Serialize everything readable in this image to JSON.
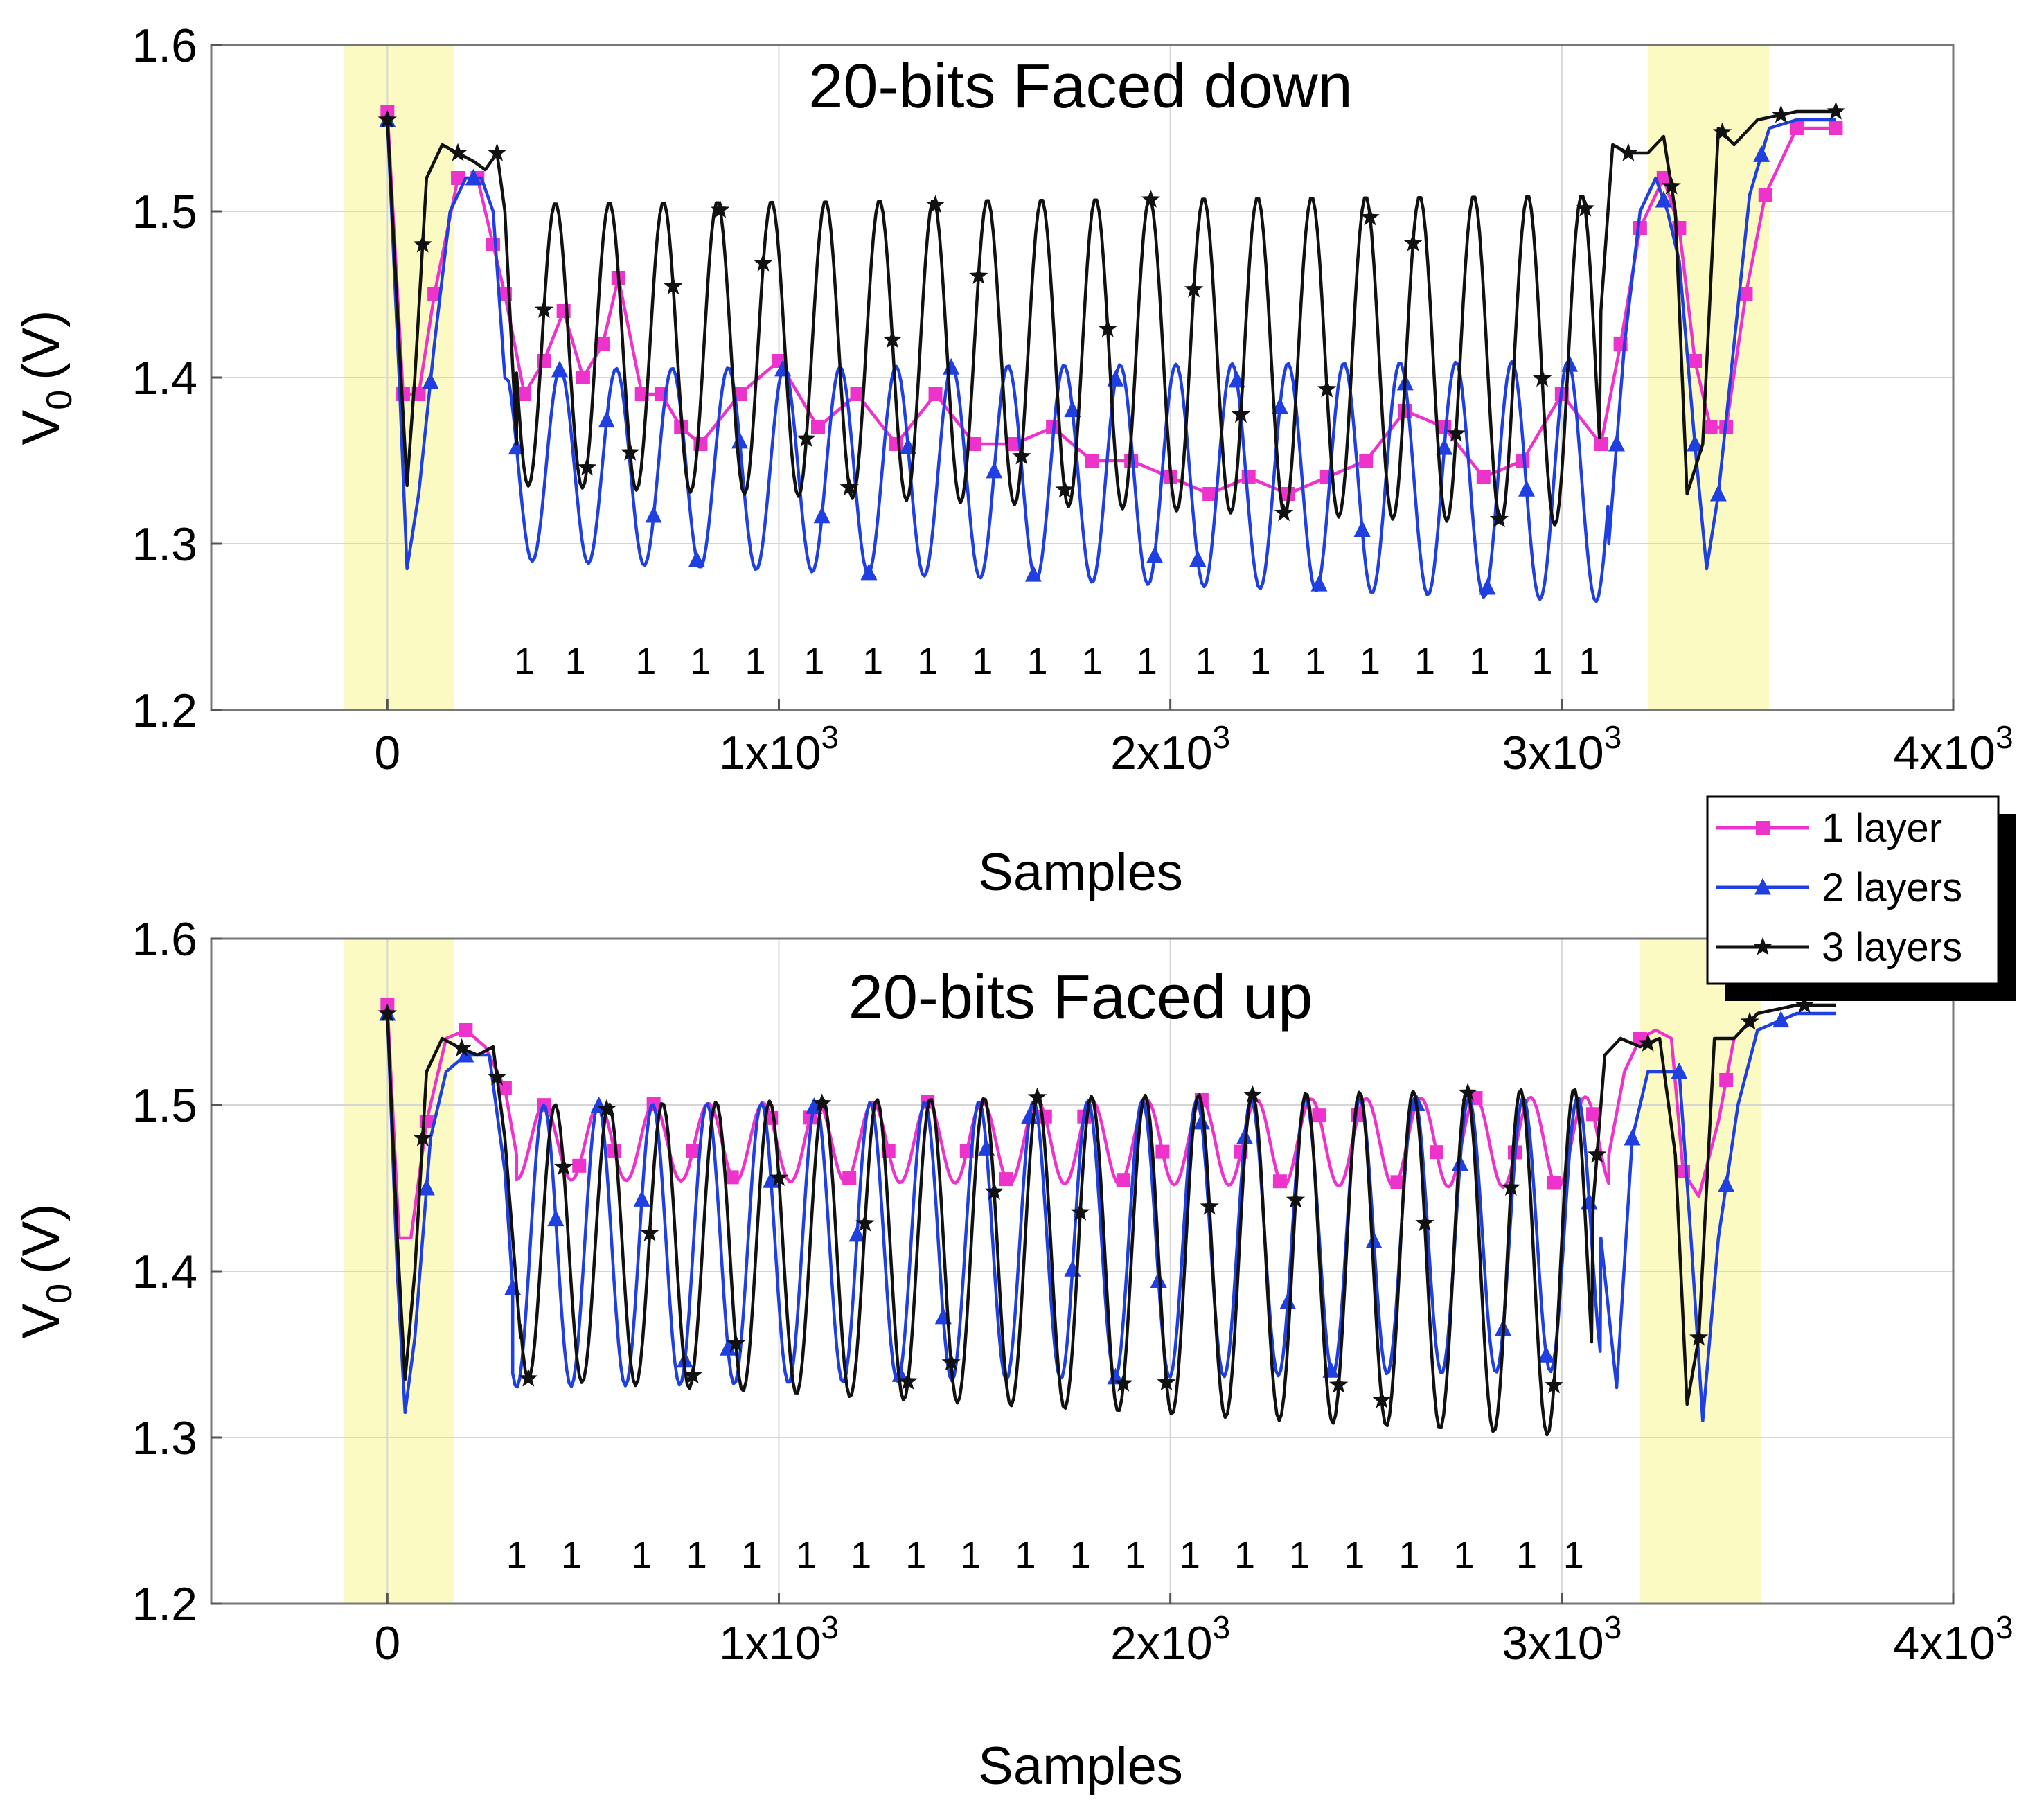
{
  "chart_data": [
    {
      "type": "line",
      "title": "20-bits Faced down",
      "xlabel": "Samples",
      "ylabel": "V",
      "ylabel_sub": "0",
      "ylabel_unit": "(V)",
      "xlim": [
        -450,
        4000
      ],
      "ylim": [
        1.2,
        1.6
      ],
      "x_ticks": [
        {
          "base": "0",
          "exp": ""
        },
        {
          "base": "1x10",
          "exp": "3"
        },
        {
          "base": "2x10",
          "exp": "3"
        },
        {
          "base": "3x10",
          "exp": "3"
        },
        {
          "base": "4x10",
          "exp": "3"
        }
      ],
      "y_ticks": [
        "1.2",
        "1.3",
        "1.4",
        "1.5",
        "1.6"
      ],
      "highlight_regions": [
        [
          -110,
          170
        ],
        [
          3220,
          3530
        ]
      ],
      "highlight_color": "#fcfac3",
      "bit_labels": {
        "text": "1",
        "y": 1.23,
        "x": [
          350,
          480,
          660,
          800,
          940,
          1090,
          1240,
          1380,
          1520,
          1660,
          1800,
          1940,
          2090,
          2230,
          2370,
          2510,
          2650,
          2790,
          2950,
          3070
        ]
      },
      "series": [
        {
          "name": "1 layer",
          "color": "#ee33cc",
          "marker": "square",
          "x": [
            0,
            40,
            80,
            120,
            180,
            230,
            270,
            300,
            350,
            400,
            450,
            500,
            550,
            590,
            650,
            700,
            750,
            800,
            900,
            1000,
            1100,
            1200,
            1300,
            1400,
            1500,
            1600,
            1700,
            1800,
            1900,
            2000,
            2100,
            2200,
            2300,
            2400,
            2500,
            2600,
            2700,
            2800,
            2900,
            3000,
            3100,
            3150,
            3200,
            3260,
            3300,
            3340,
            3380,
            3420,
            3470,
            3520,
            3600,
            3700
          ],
          "y": [
            1.56,
            1.39,
            1.39,
            1.45,
            1.52,
            1.52,
            1.48,
            1.45,
            1.39,
            1.41,
            1.44,
            1.4,
            1.42,
            1.46,
            1.39,
            1.39,
            1.37,
            1.36,
            1.39,
            1.41,
            1.37,
            1.39,
            1.36,
            1.39,
            1.36,
            1.36,
            1.37,
            1.35,
            1.35,
            1.34,
            1.33,
            1.34,
            1.33,
            1.34,
            1.35,
            1.38,
            1.37,
            1.34,
            1.35,
            1.39,
            1.36,
            1.42,
            1.49,
            1.52,
            1.49,
            1.41,
            1.37,
            1.37,
            1.45,
            1.51,
            1.55,
            1.55
          ]
        },
        {
          "name": "2 layers",
          "color": "#1f3fe0",
          "marker": "triangle",
          "osc": {
            "x0": 310,
            "x1": 3120,
            "period": 143,
            "max_start": 1.405,
            "max_end": 1.41,
            "min_start": 1.29,
            "min_end": 1.265,
            "phase": -60
          },
          "pre_x": [
            0,
            30,
            50,
            80,
            120,
            160,
            200,
            240,
            270,
            300
          ],
          "pre_y": [
            1.555,
            1.4,
            1.285,
            1.33,
            1.42,
            1.5,
            1.52,
            1.52,
            1.5,
            1.4
          ],
          "post_x": [
            3120,
            3160,
            3200,
            3240,
            3270,
            3300,
            3340,
            3370,
            3400,
            3440,
            3480,
            3530,
            3600,
            3700
          ],
          "post_y": [
            1.3,
            1.42,
            1.5,
            1.52,
            1.5,
            1.47,
            1.36,
            1.285,
            1.33,
            1.42,
            1.51,
            1.55,
            1.555,
            1.555
          ],
          "marker_x": [
            0,
            110,
            220,
            330,
            440,
            560,
            680,
            790,
            900,
            1010,
            1110,
            1230,
            1330,
            1440,
            1550,
            1650,
            1750,
            1860,
            1960,
            2070,
            2170,
            2280,
            2380,
            2490,
            2600,
            2700,
            2810,
            2910,
            3020,
            3140,
            3260,
            3340,
            3400,
            3510
          ]
        },
        {
          "name": "3 layers",
          "color": "#111111",
          "marker": "star",
          "osc": {
            "x0": 330,
            "x1": 3100,
            "period": 138,
            "max_start": 1.505,
            "max_end": 1.51,
            "min_start": 1.335,
            "min_end": 1.31,
            "phase": -30
          },
          "pre_x": [
            0,
            30,
            50,
            70,
            100,
            140,
            180,
            220,
            250,
            280,
            300,
            330
          ],
          "pre_y": [
            1.555,
            1.42,
            1.335,
            1.4,
            1.52,
            1.54,
            1.535,
            1.53,
            1.525,
            1.535,
            1.5,
            1.36
          ],
          "post_x": [
            3100,
            3130,
            3170,
            3220,
            3260,
            3290,
            3320,
            3360,
            3400,
            3440,
            3500,
            3600,
            3700
          ],
          "post_y": [
            1.44,
            1.54,
            1.535,
            1.535,
            1.545,
            1.5,
            1.33,
            1.36,
            1.55,
            1.54,
            1.555,
            1.56,
            1.56
          ],
          "marker_x": [
            0,
            90,
            180,
            280,
            400,
            510,
            620,
            730,
            850,
            960,
            1070,
            1180,
            1290,
            1400,
            1510,
            1620,
            1730,
            1840,
            1950,
            2060,
            2180,
            2290,
            2400,
            2510,
            2620,
            2730,
            2840,
            2950,
            3060,
            3170,
            3280,
            3410,
            3560,
            3700
          ]
        }
      ]
    },
    {
      "type": "line",
      "title": "20-bits Faced up",
      "xlabel": "Samples",
      "ylabel": "V",
      "ylabel_sub": "0",
      "ylabel_unit": "(V)",
      "xlim": [
        -450,
        4000
      ],
      "ylim": [
        1.2,
        1.6
      ],
      "x_ticks": [
        {
          "base": "0",
          "exp": ""
        },
        {
          "base": "1x10",
          "exp": "3"
        },
        {
          "base": "2x10",
          "exp": "3"
        },
        {
          "base": "3x10",
          "exp": "3"
        },
        {
          "base": "4x10",
          "exp": "3"
        }
      ],
      "y_ticks": [
        "1.2",
        "1.3",
        "1.4",
        "1.5",
        "1.6"
      ],
      "highlight_regions": [
        [
          -110,
          170
        ],
        [
          3200,
          3510
        ]
      ],
      "highlight_color": "#fcfac3",
      "bit_labels": {
        "text": "1",
        "y": 1.23,
        "x": [
          330,
          470,
          650,
          790,
          930,
          1070,
          1210,
          1350,
          1490,
          1630,
          1770,
          1910,
          2050,
          2190,
          2330,
          2470,
          2610,
          2750,
          2910,
          3030
        ]
      },
      "series": [
        {
          "name": "1 layer",
          "color": "#ee33cc",
          "marker": "square",
          "osc": {
            "x0": 330,
            "x1": 3120,
            "period": 140,
            "max_start": 1.5,
            "max_end": 1.505,
            "min_start": 1.455,
            "min_end": 1.45,
            "phase": 0
          },
          "pre_x": [
            0,
            30,
            60,
            100,
            150,
            200,
            250,
            300,
            330
          ],
          "pre_y": [
            1.56,
            1.42,
            1.42,
            1.49,
            1.54,
            1.545,
            1.535,
            1.51,
            1.47
          ],
          "post_x": [
            3120,
            3160,
            3200,
            3240,
            3280,
            3310,
            3350,
            3400,
            3440,
            3500,
            3600,
            3700
          ],
          "post_y": [
            1.47,
            1.52,
            1.54,
            1.545,
            1.54,
            1.46,
            1.445,
            1.49,
            1.54,
            1.555,
            1.56,
            1.56
          ],
          "marker_x": [
            0,
            100,
            200,
            300,
            400,
            490,
            580,
            680,
            780,
            880,
            980,
            1080,
            1180,
            1280,
            1380,
            1480,
            1580,
            1680,
            1780,
            1880,
            1980,
            2080,
            2180,
            2280,
            2380,
            2480,
            2580,
            2680,
            2780,
            2880,
            2980,
            3080,
            3200,
            3310,
            3420
          ]
        },
        {
          "name": "2 layers",
          "color": "#1f3fe0",
          "marker": "triangle",
          "osc": {
            "x0": 320,
            "x1": 3100,
            "period": 139,
            "max_start": 1.5,
            "max_end": 1.505,
            "min_start": 1.33,
            "min_end": 1.34,
            "phase": -10
          },
          "pre_x": [
            0,
            25,
            45,
            70,
            110,
            150,
            200,
            260,
            300,
            320
          ],
          "pre_y": [
            1.555,
            1.4,
            1.315,
            1.36,
            1.48,
            1.52,
            1.53,
            1.53,
            1.46,
            1.39
          ],
          "post_x": [
            3100,
            3140,
            3180,
            3220,
            3260,
            3300,
            3330,
            3360,
            3400,
            3450,
            3500,
            3600,
            3700
          ],
          "post_y": [
            1.42,
            1.33,
            1.48,
            1.52,
            1.52,
            1.52,
            1.42,
            1.31,
            1.42,
            1.5,
            1.545,
            1.555,
            1.555
          ],
          "marker_x": [
            0,
            100,
            200,
            320,
            430,
            540,
            650,
            760,
            870,
            980,
            1090,
            1200,
            1310,
            1420,
            1530,
            1640,
            1750,
            1860,
            1970,
            2080,
            2190,
            2300,
            2410,
            2520,
            2630,
            2740,
            2850,
            2960,
            3070,
            3180,
            3300,
            3420,
            3560
          ]
        },
        {
          "name": "3 layers",
          "color": "#111111",
          "marker": "star",
          "osc": {
            "x0": 340,
            "x1": 3080,
            "period": 137,
            "max_start": 1.5,
            "max_end": 1.51,
            "min_start": 1.335,
            "min_end": 1.3,
            "phase": -20
          },
          "pre_x": [
            0,
            25,
            45,
            70,
            100,
            140,
            180,
            230,
            270,
            300,
            340
          ],
          "pre_y": [
            1.555,
            1.42,
            1.335,
            1.4,
            1.52,
            1.54,
            1.535,
            1.53,
            1.535,
            1.48,
            1.36
          ],
          "post_x": [
            3080,
            3110,
            3150,
            3200,
            3250,
            3290,
            3320,
            3350,
            3390,
            3440,
            3500,
            3600,
            3700
          ],
          "post_y": [
            1.44,
            1.53,
            1.54,
            1.535,
            1.54,
            1.47,
            1.32,
            1.36,
            1.54,
            1.54,
            1.555,
            1.56,
            1.56
          ],
          "marker_x": [
            0,
            90,
            190,
            280,
            360,
            450,
            560,
            670,
            780,
            890,
            1000,
            1110,
            1220,
            1330,
            1440,
            1550,
            1660,
            1770,
            1880,
            1990,
            2100,
            2210,
            2320,
            2430,
            2540,
            2650,
            2760,
            2870,
            2980,
            3090,
            3220,
            3350,
            3480,
            3620
          ]
        }
      ]
    }
  ],
  "legend": {
    "placement": "right, between panels",
    "entries": [
      {
        "label": "1 layer",
        "color": "#ee33cc",
        "marker": "square"
      },
      {
        "label": "2 layers",
        "color": "#1f3fe0",
        "marker": "triangle"
      },
      {
        "label": "3 layers",
        "color": "#111111",
        "marker": "star"
      }
    ]
  }
}
